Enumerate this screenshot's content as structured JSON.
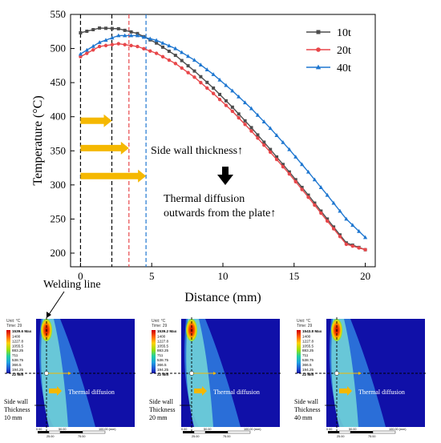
{
  "chart_data": {
    "type": "line",
    "xlabel": "Distance (mm)",
    "ylabel": "Temperature (°C)",
    "xlim": [
      -0.7,
      20.7
    ],
    "ylim": [
      180,
      550
    ],
    "x_ticks": [
      0,
      5,
      10,
      15,
      20
    ],
    "y_ticks": [
      200,
      250,
      300,
      350,
      400,
      450,
      500,
      550
    ],
    "legend_position": "top-right",
    "grid": false,
    "series": [
      {
        "name": "10t",
        "color": "#4d4d4d",
        "marker": "square",
        "peak_x": 2.2,
        "values": [
          523,
          530,
          529,
          522,
          508,
          490,
          467,
          442,
          414,
          384,
          352,
          319,
          285,
          250,
          215,
          205
        ]
      },
      {
        "name": "20t",
        "color": "#e8474a",
        "marker": "circle",
        "peak_x": 3.4,
        "values": [
          488,
          503,
          507,
          503,
          493,
          478,
          458,
          434,
          408,
          379,
          348,
          316,
          282,
          247,
          213,
          205
        ]
      },
      {
        "name": "40t",
        "color": "#1f77d0",
        "marker": "triangle",
        "peak_x": 4.6,
        "values": [
          492,
          509,
          519,
          519,
          512,
          500,
          483,
          462,
          438,
          412,
          383,
          352,
          319,
          285,
          250,
          223
        ]
      }
    ],
    "x": [
      0,
      1.333,
      2.667,
      4,
      5.333,
      6.667,
      8,
      9.333,
      10.667,
      12,
      13.333,
      14.667,
      16,
      17.333,
      18.667,
      20
    ],
    "vlines": [
      {
        "x": 0,
        "color": "#000000"
      },
      {
        "x": 2.2,
        "color": "#000000"
      },
      {
        "x": 3.4,
        "color": "#e8474a"
      },
      {
        "x": 4.6,
        "color": "#1f77d0"
      }
    ],
    "arrows": [
      {
        "y": 394,
        "x_end": 2.2
      },
      {
        "y": 354,
        "x_end": 3.4
      },
      {
        "y": 313,
        "x_end": 4.6
      }
    ],
    "annotations": {
      "side_wall": "Side wall thickness↑",
      "diffusion_line1": "Thermal diffusion",
      "diffusion_line2": "outwards from the plate↑",
      "welding_line": "Welding line"
    }
  },
  "panels": [
    {
      "unit": "Unit: °C",
      "time": "Time: 29",
      "max": "1539.6 Max",
      "legend": [
        "1400",
        "1227.8",
        "1055.5",
        "883.25",
        "711",
        "538.75",
        "366.5",
        "194.25"
      ],
      "min": "22 Min",
      "label1": "Side wall",
      "label2": "Thickness",
      "label3": "10 mm",
      "diffusion": "Thermal diffusion",
      "scale": [
        "0.00",
        "50.00",
        "100.00 (mm)",
        "25.00",
        "75.00"
      ]
    },
    {
      "unit": "Unit: °C",
      "time": "Time: 29",
      "max": "1539.2 Max",
      "legend": [
        "1400",
        "1227.8",
        "1055.5",
        "883.25",
        "711",
        "538.75",
        "366.5",
        "194.25"
      ],
      "min": "22 Min",
      "label1": "Side wall",
      "label2": "Thickness",
      "label3": "20 mm",
      "diffusion": "Thermal diffusion",
      "scale": [
        "0.00",
        "50.00",
        "100.00 (mm)",
        "25.00",
        "75.00"
      ]
    },
    {
      "unit": "Unit: °C",
      "time": "Time: 29",
      "max": "1543.8 Max",
      "legend": [
        "1400",
        "1227.8",
        "1055.5",
        "883.25",
        "711",
        "538.75",
        "366.5",
        "194.25"
      ],
      "min": "22 Min",
      "label1": "Side wall",
      "label2": "Thickness",
      "label3": "40 mm",
      "diffusion": "Thermal diffusion",
      "scale": [
        "0.00",
        "50.00",
        "100.00 (mm)",
        "25.00",
        "75.00"
      ]
    }
  ],
  "colors": {
    "arrow": "#f5b800",
    "field_bg": "#1010a8",
    "plume_outer": "#2f7fe0",
    "plume_mid": "#6fd0d8",
    "hot": "#d03010"
  }
}
